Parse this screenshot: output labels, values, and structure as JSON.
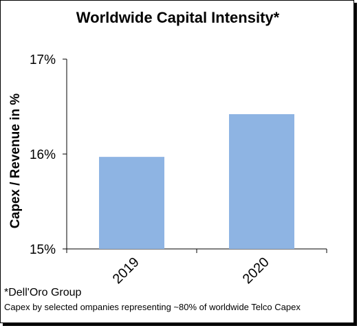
{
  "chart_data": {
    "type": "bar",
    "title": "Worldwide Capital Intensity*",
    "xlabel": "",
    "ylabel": "Capex / Revenue in %",
    "categories": [
      "2019",
      "2020"
    ],
    "values": [
      15.97,
      16.42
    ],
    "ylim": [
      15,
      17
    ],
    "yticks": [
      15,
      16,
      17
    ],
    "ytick_labels": [
      "15%",
      "16%",
      "17%"
    ],
    "bar_color": "#8eb4e3",
    "grid": false,
    "legend": "none"
  },
  "footnotes": {
    "source": "*Dell'Oro Group",
    "note": "Capex by selected ompanies representing ~80% of worldwide Telco Capex"
  }
}
